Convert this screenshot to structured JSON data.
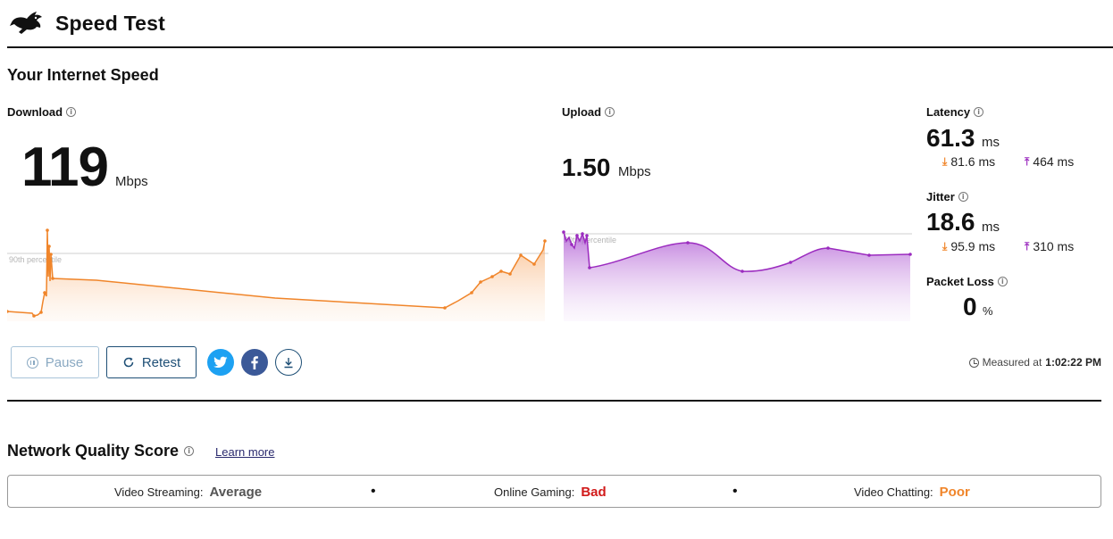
{
  "header": {
    "title": "Speed Test",
    "logo_icon": "running-rabbit-icon"
  },
  "section_title": "Your Internet Speed",
  "download": {
    "label": "Download",
    "value": "119",
    "unit": "Mbps",
    "percentile_label": "90th percentile",
    "color": "#f0852a"
  },
  "upload": {
    "label": "Upload",
    "value": "1.50",
    "unit": "Mbps",
    "percentile_label": "90th percentile",
    "color": "#9b2bbf"
  },
  "latency": {
    "label": "Latency",
    "value": "61.3",
    "unit": "ms",
    "download_value": "81.6 ms",
    "upload_value": "464 ms"
  },
  "jitter": {
    "label": "Jitter",
    "value": "18.6",
    "unit": "ms",
    "download_value": "95.9 ms",
    "upload_value": "310 ms"
  },
  "packet_loss": {
    "label": "Packet Loss",
    "value": "0",
    "unit": "%"
  },
  "buttons": {
    "pause": "Pause",
    "retest": "Retest"
  },
  "measured": {
    "prefix": "Measured at",
    "time": "1:02:22 PM"
  },
  "network_quality": {
    "title": "Network Quality Score",
    "learn_more": "Learn more",
    "items": [
      {
        "label": "Video Streaming:",
        "value": "Average",
        "color": "#555555"
      },
      {
        "label": "Online Gaming:",
        "value": "Bad",
        "color": "#d11a1a"
      },
      {
        "label": "Video Chatting:",
        "value": "Poor",
        "color": "#f0852a"
      }
    ]
  }
}
